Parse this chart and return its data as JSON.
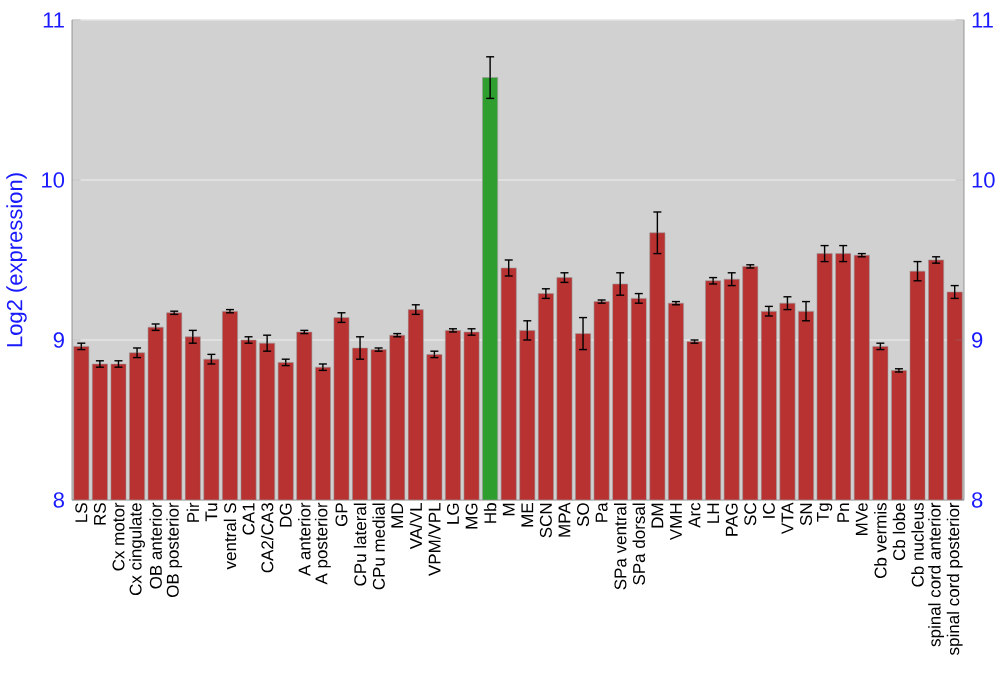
{
  "chart_data": {
    "type": "bar",
    "ylabel": "Log2 (expression)",
    "categories": [
      "LS",
      "RS",
      "Cx motor",
      "Cx cingulate",
      "OB anterior",
      "OB posterior",
      "Pir",
      "Tu",
      "ventral S",
      "CA1",
      "CA2/CA3",
      "DG",
      "A anterior",
      "A posterior",
      "GP",
      "CPu lateral",
      "CPu medial",
      "MD",
      "VA/VL",
      "VPM/VPL",
      "LG",
      "MG",
      "Hb",
      "M",
      "ME",
      "SCN",
      "MPA",
      "SO",
      "Pa",
      "SPa ventral",
      "SPa dorsal",
      "DM",
      "VMH",
      "Arc",
      "LH",
      "PAG",
      "SC",
      "IC",
      "VTA",
      "SN",
      "Tg",
      "Pn",
      "MVe",
      "Cb vermis",
      "Cb lobe",
      "Cb nucleus",
      "spinal cord anterior",
      "spinal cord posterior"
    ],
    "values": [
      8.96,
      8.85,
      8.85,
      8.92,
      9.08,
      9.17,
      9.02,
      8.88,
      9.18,
      9.0,
      8.98,
      8.86,
      9.05,
      8.83,
      9.14,
      8.95,
      8.94,
      9.03,
      9.19,
      8.91,
      9.06,
      9.05,
      10.64,
      9.45,
      9.06,
      9.29,
      9.39,
      9.04,
      9.24,
      9.35,
      9.26,
      9.67,
      9.23,
      8.99,
      9.37,
      9.38,
      9.46,
      9.18,
      9.23,
      9.18,
      9.54,
      9.54,
      9.53,
      8.96,
      8.81,
      9.43,
      9.5,
      9.3
    ],
    "errors": [
      0.02,
      0.02,
      0.02,
      0.03,
      0.02,
      0.01,
      0.04,
      0.03,
      0.01,
      0.02,
      0.05,
      0.02,
      0.01,
      0.02,
      0.03,
      0.07,
      0.01,
      0.01,
      0.03,
      0.02,
      0.01,
      0.02,
      0.13,
      0.05,
      0.06,
      0.03,
      0.03,
      0.1,
      0.01,
      0.07,
      0.03,
      0.13,
      0.01,
      0.01,
      0.02,
      0.04,
      0.01,
      0.03,
      0.04,
      0.06,
      0.05,
      0.05,
      0.01,
      0.02,
      0.01,
      0.06,
      0.02,
      0.04
    ],
    "colors": [
      "#b83232",
      "#b83232",
      "#b83232",
      "#b83232",
      "#b83232",
      "#b83232",
      "#b83232",
      "#b83232",
      "#b83232",
      "#b83232",
      "#b83232",
      "#b83232",
      "#b83232",
      "#b83232",
      "#b83232",
      "#b83232",
      "#b83232",
      "#b83232",
      "#b83232",
      "#b83232",
      "#b83232",
      "#b83232",
      "#2e9e2e",
      "#b83232",
      "#b83232",
      "#b83232",
      "#b83232",
      "#b83232",
      "#b83232",
      "#b83232",
      "#b83232",
      "#b83232",
      "#b83232",
      "#b83232",
      "#b83232",
      "#b83232",
      "#b83232",
      "#b83232",
      "#b83232",
      "#b83232",
      "#b83232",
      "#b83232",
      "#b83232",
      "#b83232",
      "#b83232",
      "#b83232",
      "#b83232",
      "#b83232"
    ],
    "ylim": [
      8,
      11
    ],
    "yticks": [
      8,
      9,
      10,
      11
    ],
    "y2lim": [
      8,
      11
    ],
    "y2ticks": [
      8,
      9,
      10,
      11
    ],
    "grid": "y"
  }
}
